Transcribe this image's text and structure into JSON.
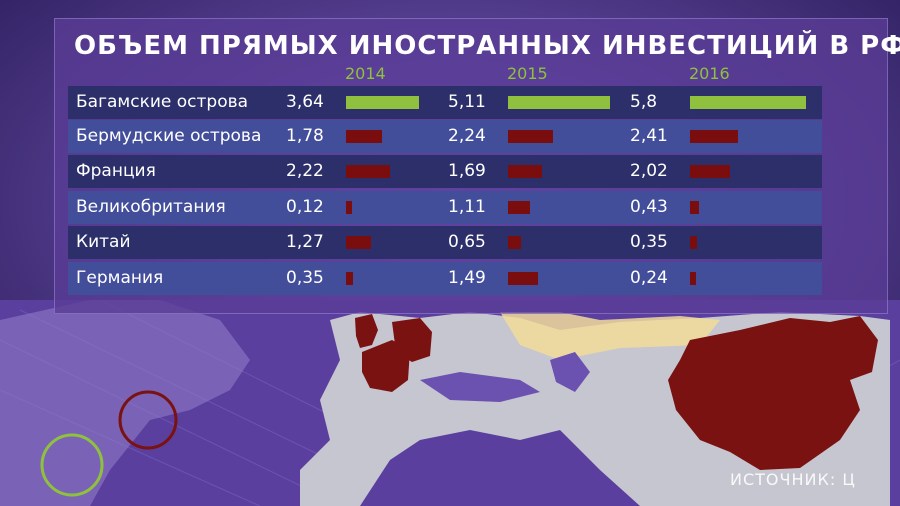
{
  "title": "ОБЪЕМ ПРЯМЫХ ИНОСТРАННЫХ ИНВЕСТИЦИЙ В РФ",
  "source_label": "ИСТОЧНИК: Ц",
  "colors": {
    "highlight_bar": "#8fc13e",
    "bar": "#7a0e0e",
    "year_label": "#8fc13e",
    "map_land": "#bdbdc8",
    "map_highlight": "#7a1212"
  },
  "chart_data": {
    "type": "table",
    "title": "ОБЪЕМ ПРЯМЫХ ИНОСТРАННЫХ ИНВЕСТИЦИЙ В РФ",
    "years": [
      "2014",
      "2015",
      "2016"
    ],
    "rows": [
      {
        "country": "Багамские острова",
        "values": [
          3.64,
          5.11,
          5.8
        ],
        "labels": [
          "3,64",
          "5,11",
          "5,8"
        ],
        "highlight": true
      },
      {
        "country": "Бермудские острова",
        "values": [
          1.78,
          2.24,
          2.41
        ],
        "labels": [
          "1,78",
          "2,24",
          "2,41"
        ],
        "highlight": false
      },
      {
        "country": "Франция",
        "values": [
          2.22,
          1.69,
          2.02
        ],
        "labels": [
          "2,22",
          "1,69",
          "2,02"
        ],
        "highlight": false
      },
      {
        "country": "Великобритания",
        "values": [
          0.12,
          1.11,
          0.43
        ],
        "labels": [
          "0,12",
          "1,11",
          "0,43"
        ],
        "highlight": false
      },
      {
        "country": "Китай",
        "values": [
          1.27,
          0.65,
          0.35
        ],
        "labels": [
          "1,27",
          "0,65",
          "0,35"
        ],
        "highlight": false
      },
      {
        "country": "Германия",
        "values": [
          0.35,
          1.49,
          0.24
        ],
        "labels": [
          "0,35",
          "1,49",
          "0,24"
        ],
        "highlight": false
      }
    ]
  }
}
